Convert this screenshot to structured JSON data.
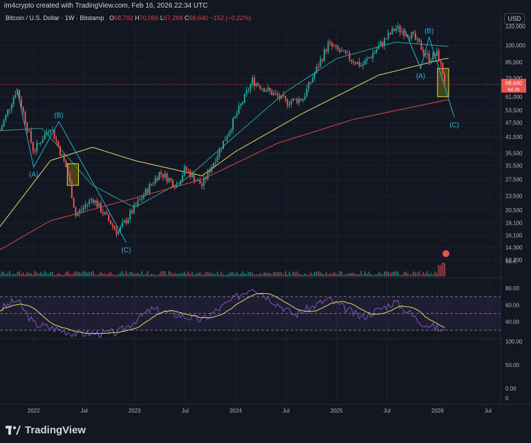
{
  "header": {
    "created_note": "im4crypto created with TradingView.com, Feb 16, 2026 22:34 UTC",
    "symbol": "Bitcoin / U.S. Dollar · 1W · Bitstamp",
    "open_label": "O",
    "open": "68,792",
    "high_label": "H",
    "high": "70,066",
    "low_label": "L",
    "low": "67,268",
    "close_label": "C",
    "close": "68,640",
    "change": "−152 (−0.22%)",
    "currency_button": "USD"
  },
  "colors": {
    "background": "#131722",
    "up": "#26a69a",
    "down": "#ef5350",
    "ma_fast": "#26a69a",
    "ma_mid": "#e8e06a",
    "ma_slow": "#e04848",
    "wave": "#2bb6d6",
    "rsi_line": "#7e57c2",
    "rsi_ma": "#e8e06a",
    "box_fill": "#6b6a18",
    "box_border": "#f0e14a"
  },
  "chart_data": {
    "type": "candlestick",
    "timeframe": "1W",
    "scale": "log",
    "ylim": [
      12700,
      120000
    ],
    "price_axis_ticks": [
      "120,000",
      "100,000",
      "85,000",
      "73,000",
      "61,000",
      "53,500",
      "47,500",
      "41,500",
      "35,500",
      "31,500",
      "27,500",
      "23,500",
      "20,500",
      "18,100",
      "16,100",
      "14,300",
      "12,700"
    ],
    "time_axis_ticks": [
      "2022",
      "Jul",
      "2023",
      "Jul",
      "2024",
      "Jul",
      "2025",
      "Jul",
      "2026",
      "Jul"
    ],
    "last_price_label": "68,640",
    "countdown_label": "6d 2h",
    "anchors": [
      {
        "date": "2021-09",
        "price": 44000
      },
      {
        "date": "2021-11",
        "price": 66000
      },
      {
        "date": "2022-01",
        "price": 36000
      },
      {
        "date": "2022-03",
        "price": 46000
      },
      {
        "date": "2022-05",
        "price": 30000
      },
      {
        "date": "2022-06",
        "price": 19500
      },
      {
        "date": "2022-08",
        "price": 23000
      },
      {
        "date": "2022-11",
        "price": 16500
      },
      {
        "date": "2023-01",
        "price": 21000
      },
      {
        "date": "2023-04",
        "price": 29500
      },
      {
        "date": "2023-06",
        "price": 26000
      },
      {
        "date": "2023-07",
        "price": 30500
      },
      {
        "date": "2023-09",
        "price": 26000
      },
      {
        "date": "2023-12",
        "price": 42500
      },
      {
        "date": "2024-03",
        "price": 71000
      },
      {
        "date": "2024-07",
        "price": 58000
      },
      {
        "date": "2024-09",
        "price": 60000
      },
      {
        "date": "2024-12",
        "price": 101000
      },
      {
        "date": "2025-04",
        "price": 82000
      },
      {
        "date": "2025-08",
        "price": 118000
      },
      {
        "date": "2025-10",
        "price": 110000
      },
      {
        "date": "2025-12",
        "price": 88000
      },
      {
        "date": "2026-01",
        "price": 92000
      },
      {
        "date": "2026-02",
        "price": 68640
      }
    ],
    "moving_averages": [
      {
        "name": "MA fast",
        "anchors": [
          {
            "date": "2021-09",
            "price": 44000
          },
          {
            "date": "2022-02",
            "price": 45000
          },
          {
            "date": "2022-08",
            "price": 26000
          },
          {
            "date": "2023-01",
            "price": 21000
          },
          {
            "date": "2023-07",
            "price": 27500
          },
          {
            "date": "2024-01",
            "price": 42000
          },
          {
            "date": "2024-07",
            "price": 64000
          },
          {
            "date": "2025-01",
            "price": 88000
          },
          {
            "date": "2025-08",
            "price": 103000
          },
          {
            "date": "2026-02",
            "price": 99000
          }
        ]
      },
      {
        "name": "MA mid",
        "anchors": [
          {
            "date": "2021-09",
            "price": 17500
          },
          {
            "date": "2022-03",
            "price": 33000
          },
          {
            "date": "2022-08",
            "price": 37500
          },
          {
            "date": "2023-01",
            "price": 33000
          },
          {
            "date": "2023-09",
            "price": 28500
          },
          {
            "date": "2024-01",
            "price": 36000
          },
          {
            "date": "2024-09",
            "price": 52000
          },
          {
            "date": "2025-06",
            "price": 75000
          },
          {
            "date": "2026-02",
            "price": 88000
          }
        ]
      },
      {
        "name": "MA slow",
        "anchors": [
          {
            "date": "2021-09",
            "price": 14000
          },
          {
            "date": "2022-03",
            "price": 18500
          },
          {
            "date": "2023-01",
            "price": 23000
          },
          {
            "date": "2023-09",
            "price": 27500
          },
          {
            "date": "2024-06",
            "price": 39000
          },
          {
            "date": "2025-03",
            "price": 49000
          },
          {
            "date": "2026-02",
            "price": 59000
          }
        ]
      }
    ],
    "elliott_waves": [
      {
        "points": [
          {
            "date": "2021-11",
            "price": 66000
          },
          {
            "date": "2022-01",
            "price": 31000
          },
          {
            "date": "2022-04",
            "price": 48000
          },
          {
            "date": "2022-12",
            "price": 15000
          }
        ],
        "labels": [
          "(A)",
          "(B)",
          "(C)"
        ]
      },
      {
        "points": [
          {
            "date": "2025-09",
            "price": 118000
          },
          {
            "date": "2025-11",
            "price": 80000
          },
          {
            "date": "2025-12",
            "price": 108000
          },
          {
            "date": "2026-03",
            "price": 50000
          }
        ],
        "labels": [
          "(A)",
          "(B)",
          "(C)"
        ]
      }
    ],
    "highlight_boxes": [
      {
        "date_from": "2022-05",
        "date_to": "2022-06",
        "price_from": 26000,
        "price_to": 32000
      },
      {
        "date_from": "2026-01",
        "date_to": "2026-02",
        "price_from": 61000,
        "price_to": 80000
      }
    ],
    "volume": {
      "axis_label": "50 K",
      "note": "weekly volume histogram, spike in Feb 2026"
    },
    "rsi": {
      "ticks": [
        "80.00",
        "60.00",
        "40.00"
      ],
      "levels": [
        70,
        50,
        30
      ],
      "anchors": [
        {
          "date": "2021-09",
          "value": 55
        },
        {
          "date": "2021-11",
          "value": 66
        },
        {
          "date": "2022-01",
          "value": 38
        },
        {
          "date": "2022-06",
          "value": 26
        },
        {
          "date": "2022-11",
          "value": 27
        },
        {
          "date": "2023-03",
          "value": 55
        },
        {
          "date": "2023-09",
          "value": 42
        },
        {
          "date": "2024-03",
          "value": 82
        },
        {
          "date": "2024-08",
          "value": 48
        },
        {
          "date": "2024-12",
          "value": 67
        },
        {
          "date": "2025-04",
          "value": 45
        },
        {
          "date": "2025-08",
          "value": 64
        },
        {
          "date": "2025-11",
          "value": 40
        },
        {
          "date": "2026-02",
          "value": 28
        }
      ]
    },
    "lower_pane_ticks": [
      "100.00",
      "50.00",
      "0.00",
      "0"
    ]
  },
  "footer": {
    "logo_text": "TradingView"
  }
}
